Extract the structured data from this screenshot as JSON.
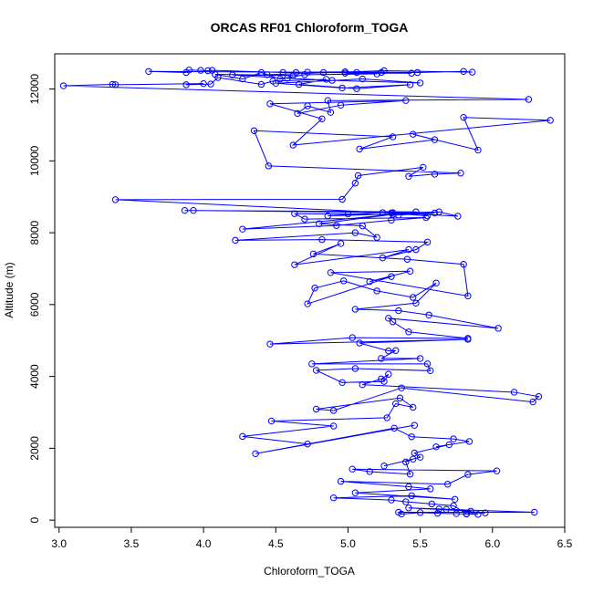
{
  "chart_data": {
    "type": "line",
    "title": "ORCAS RF01 Chloroform_TOGA",
    "xlabel": "Chloroform_TOGA",
    "ylabel": "Altitude (m)",
    "xlim": [
      2.97,
      6.5
    ],
    "ylim": [
      -200,
      12980
    ],
    "x_ticks": [
      3.0,
      3.5,
      4.0,
      4.5,
      5.0,
      5.5,
      6.0,
      6.5
    ],
    "x_tick_labels": [
      "3.0",
      "3.5",
      "4.0",
      "4.5",
      "5.0",
      "5.5",
      "6.0",
      "6.5"
    ],
    "y_ticks": [
      0,
      2000,
      4000,
      6000,
      8000,
      10000,
      12000
    ],
    "y_tick_labels": [
      "0",
      "2000",
      "4000",
      "6000",
      "8000",
      "10000",
      "12000"
    ],
    "grid": false,
    "series": [
      {
        "name": "Chloroform_TOGA",
        "color": "#0000ff",
        "marker": "open-circle",
        "points": [
          [
            5.9,
            160
          ],
          [
            5.82,
            170
          ],
          [
            5.75,
            180
          ],
          [
            5.62,
            190
          ],
          [
            5.5,
            210
          ],
          [
            5.37,
            170
          ],
          [
            5.35,
            220
          ],
          [
            6.29,
            220
          ],
          [
            5.63,
            310
          ],
          [
            5.42,
            340
          ],
          [
            5.85,
            250
          ],
          [
            5.68,
            300
          ],
          [
            5.95,
            200
          ],
          [
            5.82,
            180
          ],
          [
            5.73,
            400
          ],
          [
            5.58,
            450
          ],
          [
            5.4,
            510
          ],
          [
            5.3,
            560
          ],
          [
            4.9,
            620
          ],
          [
            5.44,
            680
          ],
          [
            5.74,
            580
          ],
          [
            5.05,
            760
          ],
          [
            5.57,
            870
          ],
          [
            5.42,
            930
          ],
          [
            4.95,
            1080
          ],
          [
            5.69,
            1000
          ],
          [
            5.83,
            1270
          ],
          [
            6.03,
            1370
          ],
          [
            5.03,
            1420
          ],
          [
            5.15,
            1350
          ],
          [
            5.43,
            1280
          ],
          [
            5.4,
            1620
          ],
          [
            5.45,
            1700
          ],
          [
            5.25,
            1510
          ],
          [
            5.5,
            1750
          ],
          [
            5.46,
            1870
          ],
          [
            5.7,
            2100
          ],
          [
            5.61,
            2040
          ],
          [
            5.84,
            2190
          ],
          [
            5.73,
            2260
          ],
          [
            5.44,
            2320
          ],
          [
            5.32,
            2560
          ],
          [
            4.36,
            1850
          ],
          [
            5.46,
            2640
          ],
          [
            4.72,
            2120
          ],
          [
            4.27,
            2330
          ],
          [
            4.9,
            2620
          ],
          [
            4.47,
            2760
          ],
          [
            5.27,
            2850
          ],
          [
            5.33,
            3240
          ],
          [
            5.45,
            3140
          ],
          [
            5.36,
            3400
          ],
          [
            4.78,
            3090
          ],
          [
            4.9,
            3050
          ],
          [
            5.37,
            3680
          ],
          [
            6.28,
            3290
          ],
          [
            6.32,
            3440
          ],
          [
            6.15,
            3560
          ],
          [
            5.1,
            3770
          ],
          [
            5.23,
            3930
          ],
          [
            5.28,
            4060
          ],
          [
            5.25,
            3860
          ],
          [
            4.96,
            3830
          ],
          [
            4.78,
            4170
          ],
          [
            5.05,
            4220
          ],
          [
            5.57,
            4160
          ],
          [
            5.55,
            4350
          ],
          [
            4.75,
            4350
          ],
          [
            5.5,
            4500
          ],
          [
            5.23,
            4500
          ],
          [
            5.33,
            4720
          ],
          [
            5.28,
            4710
          ],
          [
            5.08,
            4930
          ],
          [
            5.83,
            5030
          ],
          [
            4.46,
            4900
          ],
          [
            5.03,
            5080
          ],
          [
            5.83,
            5060
          ],
          [
            5.42,
            5240
          ],
          [
            5.31,
            5520
          ],
          [
            5.28,
            5620
          ],
          [
            6.04,
            5340
          ],
          [
            5.56,
            5710
          ],
          [
            5.35,
            5830
          ],
          [
            5.05,
            5870
          ],
          [
            5.47,
            6040
          ],
          [
            5.61,
            6600
          ],
          [
            5.45,
            6200
          ],
          [
            5.2,
            6380
          ],
          [
            4.97,
            6660
          ],
          [
            4.77,
            6460
          ],
          [
            4.72,
            6020
          ],
          [
            5.3,
            6780
          ],
          [
            5.15,
            6640
          ],
          [
            5.43,
            6930
          ],
          [
            4.88,
            6890
          ],
          [
            5.83,
            6240
          ],
          [
            5.8,
            7120
          ],
          [
            5.41,
            7260
          ],
          [
            4.76,
            7410
          ],
          [
            4.95,
            7700
          ],
          [
            4.63,
            7110
          ],
          [
            5.42,
            7530
          ],
          [
            5.24,
            7300
          ],
          [
            5.47,
            7530
          ],
          [
            5.55,
            7740
          ],
          [
            4.82,
            7810
          ],
          [
            4.22,
            7790
          ],
          [
            5.05,
            8000
          ],
          [
            5.2,
            7870
          ],
          [
            5.1,
            8190
          ],
          [
            4.8,
            8250
          ],
          [
            5.31,
            8510
          ],
          [
            4.27,
            8100
          ],
          [
            4.92,
            8200
          ],
          [
            5.3,
            8350
          ],
          [
            5.54,
            8420
          ],
          [
            4.7,
            8380
          ],
          [
            4.63,
            8530
          ],
          [
            5.0,
            8520
          ],
          [
            5.35,
            8490
          ],
          [
            5.6,
            8550
          ],
          [
            4.86,
            8470
          ],
          [
            5.24,
            8560
          ],
          [
            5.55,
            8470
          ],
          [
            5.47,
            8580
          ],
          [
            3.87,
            8620
          ],
          [
            3.93,
            8620
          ],
          [
            5.31,
            8560
          ],
          [
            5.76,
            8460
          ],
          [
            5.63,
            8580
          ],
          [
            5.3,
            8550
          ],
          [
            3.39,
            8920
          ],
          [
            4.96,
            8930
          ],
          [
            5.05,
            9380
          ],
          [
            5.07,
            9590
          ],
          [
            5.52,
            9820
          ],
          [
            5.42,
            9570
          ],
          [
            5.6,
            9630
          ],
          [
            5.78,
            9660
          ],
          [
            4.45,
            9860
          ],
          [
            4.35,
            10840
          ],
          [
            5.31,
            10670
          ],
          [
            5.08,
            10330
          ],
          [
            5.6,
            10590
          ],
          [
            5.45,
            10740
          ],
          [
            5.9,
            10300
          ],
          [
            5.8,
            11210
          ],
          [
            6.4,
            11130
          ],
          [
            4.62,
            10440
          ],
          [
            4.82,
            11170
          ],
          [
            4.46,
            11590
          ],
          [
            5.4,
            11680
          ],
          [
            4.95,
            11550
          ],
          [
            4.65,
            11320
          ],
          [
            4.72,
            11530
          ],
          [
            4.88,
            11350
          ],
          [
            4.86,
            11680
          ],
          [
            6.25,
            11710
          ],
          [
            3.03,
            12090
          ],
          [
            3.37,
            12130
          ],
          [
            3.39,
            12120
          ],
          [
            4.0,
            12150
          ],
          [
            3.88,
            12120
          ],
          [
            4.05,
            12140
          ],
          [
            4.1,
            12320
          ],
          [
            4.4,
            12130
          ],
          [
            4.48,
            12220
          ],
          [
            4.85,
            12270
          ],
          [
            4.66,
            12130
          ],
          [
            5.06,
            12010
          ],
          [
            5.43,
            12120
          ],
          [
            4.96,
            12030
          ],
          [
            4.5,
            12160
          ],
          [
            5.1,
            12280
          ],
          [
            5.5,
            12170
          ],
          [
            4.89,
            12240
          ],
          [
            4.58,
            12300
          ],
          [
            4.2,
            12390
          ],
          [
            4.62,
            12380
          ],
          [
            4.08,
            12410
          ],
          [
            4.27,
            12280
          ],
          [
            4.4,
            12460
          ],
          [
            4.53,
            12280
          ],
          [
            4.7,
            12400
          ],
          [
            5.2,
            12420
          ],
          [
            4.98,
            12440
          ],
          [
            5.44,
            12440
          ],
          [
            4.83,
            12460
          ],
          [
            5.06,
            12460
          ],
          [
            5.23,
            12460
          ],
          [
            3.62,
            12490
          ],
          [
            3.88,
            12460
          ],
          [
            3.9,
            12530
          ],
          [
            3.98,
            12520
          ],
          [
            4.03,
            12510
          ],
          [
            4.06,
            12520
          ],
          [
            4.55,
            12460
          ],
          [
            4.64,
            12460
          ],
          [
            4.72,
            12470
          ],
          [
            4.98,
            12480
          ],
          [
            5.48,
            12460
          ],
          [
            5.8,
            12490
          ],
          [
            5.86,
            12470
          ],
          [
            5.25,
            12510
          ],
          [
            4.44,
            12400
          ]
        ]
      }
    ]
  }
}
